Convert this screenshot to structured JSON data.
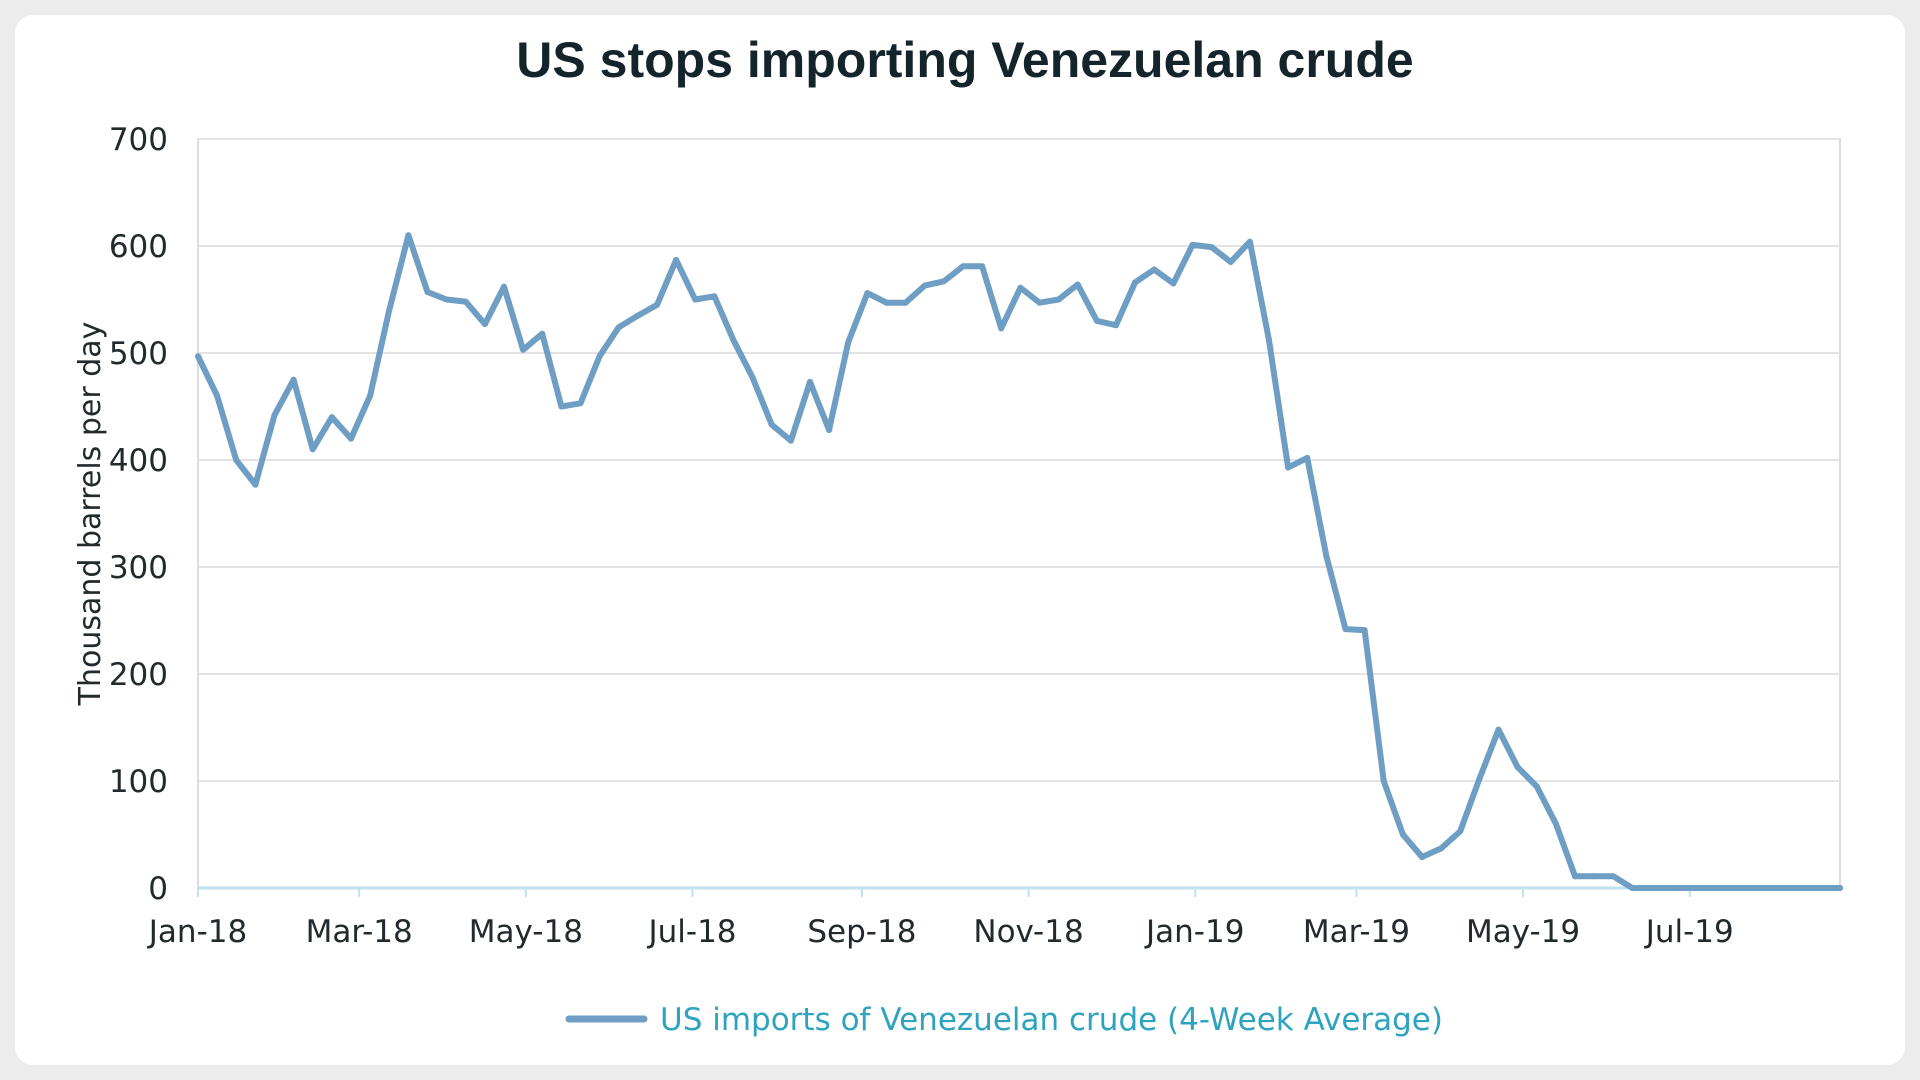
{
  "chart_data": {
    "type": "line",
    "title": "US stops importing Venezuelan crude",
    "xlabel": "",
    "ylabel": "Thousand barrels per day",
    "ylim": [
      0,
      700
    ],
    "yticks": [
      0,
      100,
      200,
      300,
      400,
      500,
      600,
      700
    ],
    "xlim": [
      "2018-01-01",
      "2019-08-25"
    ],
    "xticks": [
      {
        "label": "Jan-18",
        "date": "2018-01-01"
      },
      {
        "label": "Mar-18",
        "date": "2018-03-01"
      },
      {
        "label": "May-18",
        "date": "2018-05-01"
      },
      {
        "label": "Jul-18",
        "date": "2018-07-01"
      },
      {
        "label": "Sep-18",
        "date": "2018-09-01"
      },
      {
        "label": "Nov-18",
        "date": "2018-11-01"
      },
      {
        "label": "Jan-19",
        "date": "2019-01-01"
      },
      {
        "label": "Mar-19",
        "date": "2019-03-01"
      },
      {
        "label": "May-19",
        "date": "2019-05-01"
      },
      {
        "label": "Jul-19",
        "date": "2019-07-01"
      }
    ],
    "grid": true,
    "legend_position": "bottom",
    "colors": {
      "line": "#6f9ec4",
      "legend_text": "#2ea3bf",
      "grid": "#e3e3e3",
      "zero_axis": "#bfe3ee",
      "frame": "#dcdcdc"
    },
    "series": [
      {
        "name": "US imports of Venezuelan crude (4-Week Average)",
        "x": [
          "2018-01-01",
          "2018-01-08",
          "2018-01-15",
          "2018-01-22",
          "2018-01-29",
          "2018-02-05",
          "2018-02-12",
          "2018-02-19",
          "2018-02-26",
          "2018-03-05",
          "2018-03-12",
          "2018-03-19",
          "2018-03-26",
          "2018-04-02",
          "2018-04-09",
          "2018-04-16",
          "2018-04-23",
          "2018-04-30",
          "2018-05-07",
          "2018-05-14",
          "2018-05-21",
          "2018-05-28",
          "2018-06-04",
          "2018-06-11",
          "2018-06-18",
          "2018-06-25",
          "2018-07-02",
          "2018-07-09",
          "2018-07-16",
          "2018-07-23",
          "2018-07-30",
          "2018-08-06",
          "2018-08-13",
          "2018-08-20",
          "2018-08-27",
          "2018-09-03",
          "2018-09-10",
          "2018-09-17",
          "2018-09-24",
          "2018-10-01",
          "2018-10-08",
          "2018-10-15",
          "2018-10-22",
          "2018-10-29",
          "2018-11-05",
          "2018-11-12",
          "2018-11-19",
          "2018-11-26",
          "2018-12-03",
          "2018-12-10",
          "2018-12-17",
          "2018-12-24",
          "2018-12-31",
          "2019-01-07",
          "2019-01-14",
          "2019-01-21",
          "2019-01-28",
          "2019-02-04",
          "2019-02-11",
          "2019-02-18",
          "2019-02-25",
          "2019-03-04",
          "2019-03-11",
          "2019-03-18",
          "2019-03-25",
          "2019-04-01",
          "2019-04-08",
          "2019-04-15",
          "2019-04-22",
          "2019-04-29",
          "2019-05-06",
          "2019-05-13",
          "2019-05-20",
          "2019-05-27",
          "2019-06-03",
          "2019-06-10",
          "2019-06-17",
          "2019-06-24",
          "2019-07-01",
          "2019-07-08",
          "2019-07-15",
          "2019-07-22",
          "2019-07-29",
          "2019-08-05",
          "2019-08-12",
          "2019-08-19",
          "2019-08-25"
        ],
        "values": [
          497,
          460,
          400,
          377,
          442,
          475,
          410,
          440,
          420,
          460,
          540,
          610,
          557,
          550,
          548,
          527,
          562,
          503,
          518,
          450,
          453,
          497,
          524,
          535,
          545,
          587,
          550,
          553,
          512,
          477,
          433,
          418,
          473,
          428,
          510,
          556,
          547,
          547,
          563,
          567,
          581,
          581,
          523,
          561,
          547,
          550,
          564,
          530,
          526,
          566,
          578,
          565,
          601,
          599,
          585,
          604,
          512,
          393,
          402,
          310,
          242,
          241,
          100,
          50,
          29,
          37,
          53,
          102,
          148,
          113,
          95,
          60,
          11,
          11,
          11,
          0,
          0,
          0,
          0,
          0,
          0,
          0,
          0,
          0,
          0,
          0,
          0
        ]
      }
    ]
  }
}
